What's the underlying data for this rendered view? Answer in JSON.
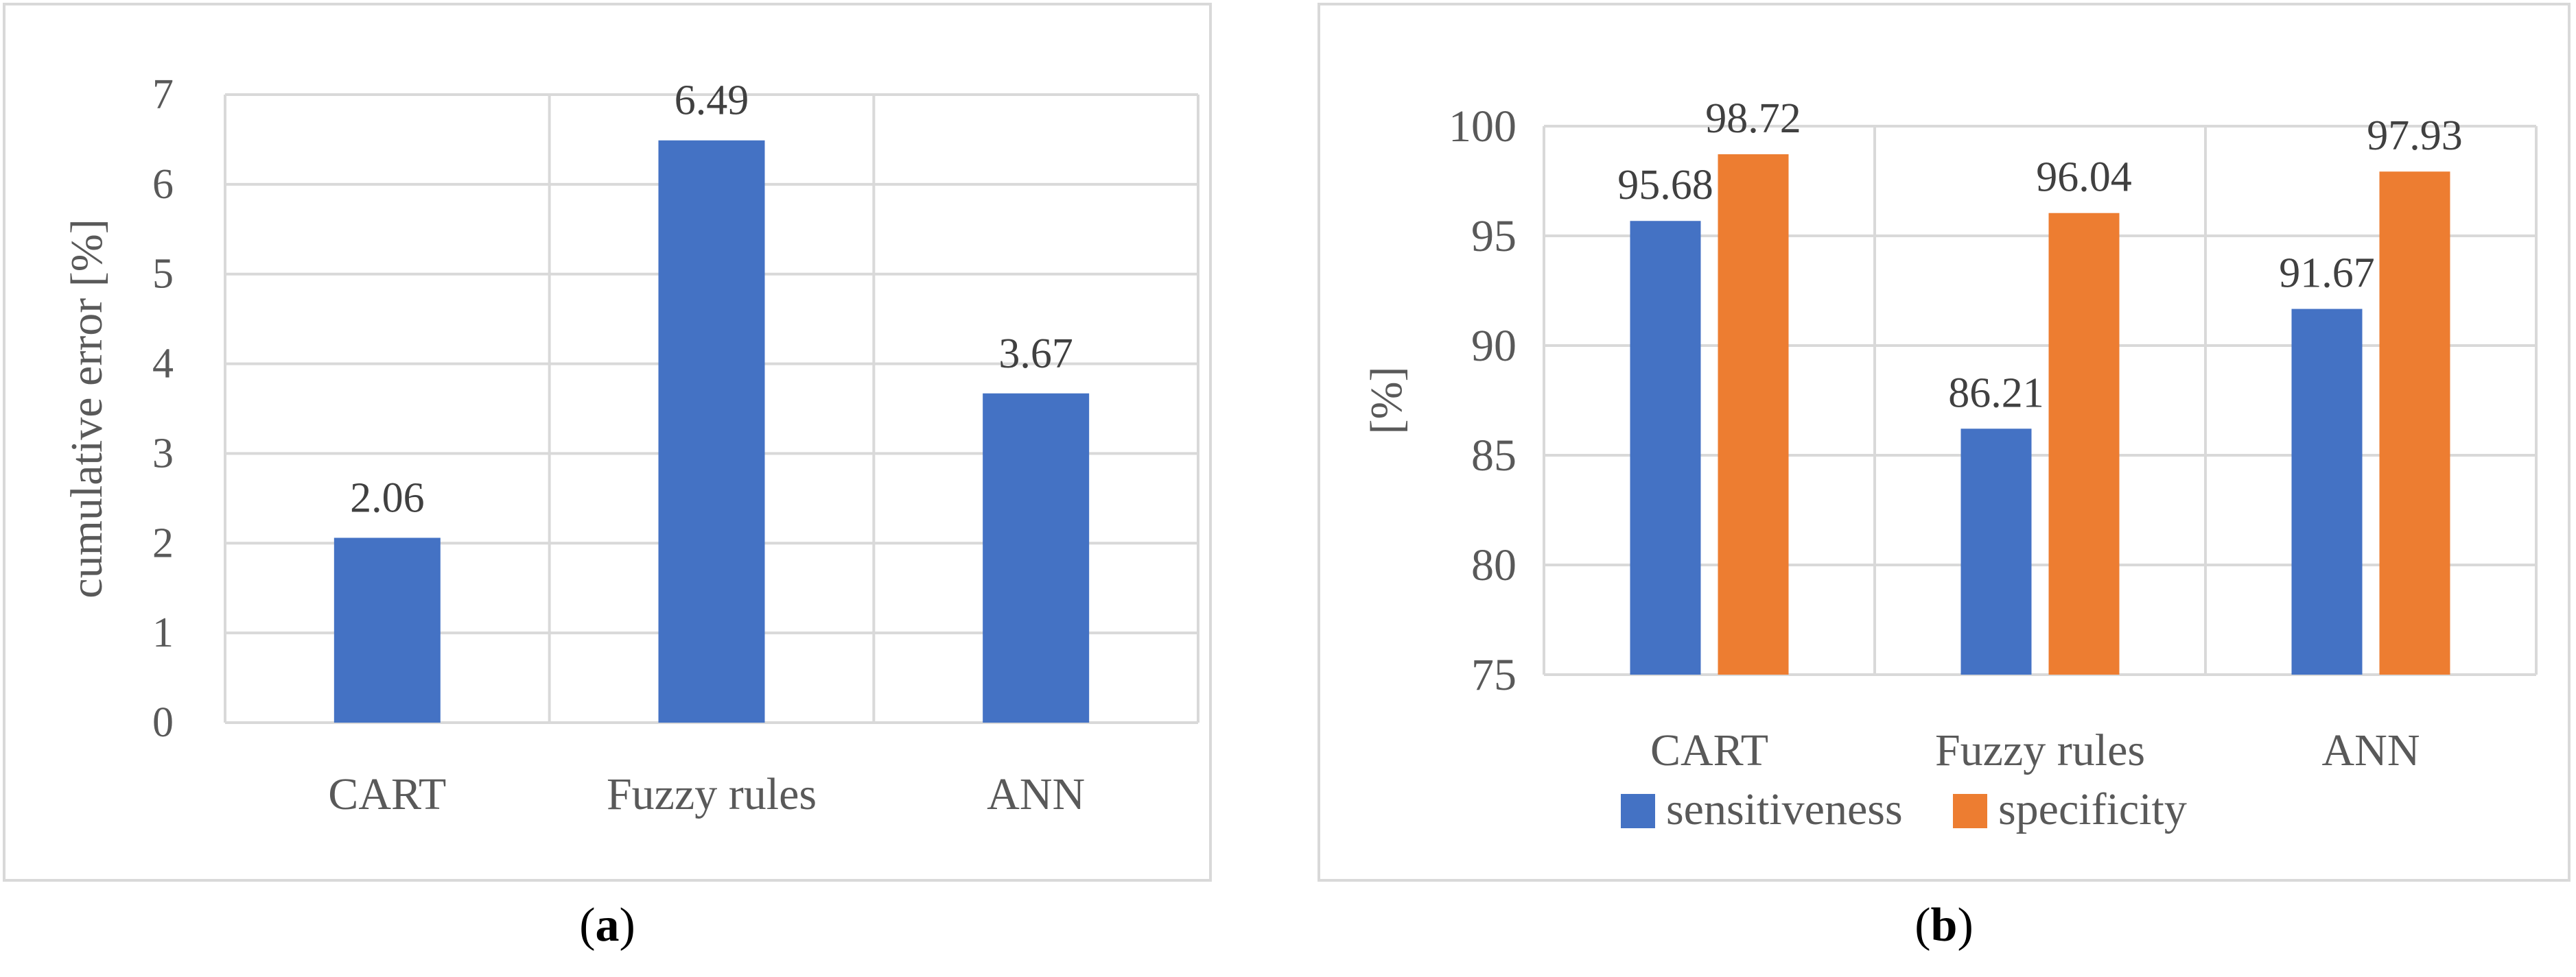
{
  "chart_data": [
    {
      "type": "bar",
      "categories": [
        "CART",
        "Fuzzy rules",
        "ANN"
      ],
      "values": [
        2.06,
        6.49,
        3.67
      ],
      "data_labels": [
        "2.06",
        "6.49",
        "3.67"
      ],
      "ylabel": "cumulative error [%]",
      "ylim": [
        0,
        7
      ],
      "yticks": [
        "0",
        "1",
        "2",
        "3",
        "4",
        "5",
        "6",
        "7"
      ],
      "grid": true,
      "color": "#4472c4"
    },
    {
      "type": "bar",
      "categories": [
        "CART",
        "Fuzzy rules",
        "ANN"
      ],
      "series": [
        {
          "name": "sensitiveness",
          "values": [
            95.68,
            86.21,
            91.67
          ],
          "labels": [
            "95.68",
            "86.21",
            "91.67"
          ],
          "color": "#4472c4"
        },
        {
          "name": "specificity",
          "values": [
            98.72,
            96.04,
            97.93
          ],
          "labels": [
            "98.72",
            "96.04",
            "97.93"
          ],
          "color": "#ed7d31"
        }
      ],
      "ylabel": "[%]",
      "ylim": [
        75,
        100
      ],
      "yticks": [
        "75",
        "80",
        "85",
        "90",
        "95",
        "100"
      ],
      "grid": true,
      "legend": "bottom"
    }
  ],
  "captions": {
    "a": {
      "open": "(",
      "letter": "a",
      "close": ")"
    },
    "b": {
      "open": "(",
      "letter": "b",
      "close": ")"
    }
  }
}
